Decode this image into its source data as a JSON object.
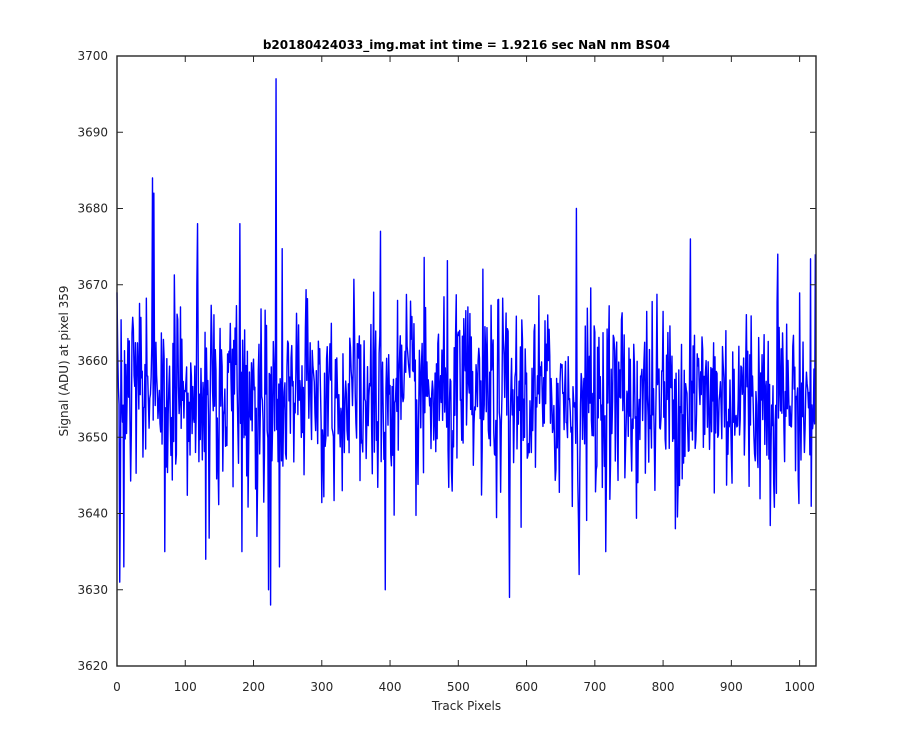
{
  "chart_data": {
    "type": "line",
    "title": "b20180424033_img.mat int time = 1.9216 sec  NaN nm BS04",
    "xlabel": "Track Pixels",
    "ylabel": "Signal (ADU) at pixel 359",
    "xlim": [
      0,
      1024
    ],
    "ylim": [
      3620,
      3700
    ],
    "xticks": [
      0,
      100,
      200,
      300,
      400,
      500,
      600,
      700,
      800,
      900,
      1000
    ],
    "yticks": [
      3620,
      3630,
      3640,
      3650,
      3660,
      3670,
      3680,
      3690,
      3700
    ],
    "grid": false,
    "series": [
      {
        "color": "#0000ff",
        "x_start": 0,
        "x_step": 1,
        "n_points": 1024,
        "mean": 3655,
        "std": 6.5,
        "notable_points": [
          [
            0,
            3669
          ],
          [
            4,
            3631
          ],
          [
            10,
            3633
          ],
          [
            52,
            3684
          ],
          [
            54,
            3682
          ],
          [
            70,
            3635
          ],
          [
            118,
            3678
          ],
          [
            130,
            3634
          ],
          [
            180,
            3678
          ],
          [
            183,
            3635
          ],
          [
            205,
            3637
          ],
          [
            222,
            3630
          ],
          [
            225,
            3628
          ],
          [
            233,
            3697
          ],
          [
            238,
            3633
          ],
          [
            386,
            3677
          ],
          [
            393,
            3630
          ],
          [
            575,
            3629
          ],
          [
            673,
            3680
          ],
          [
            677,
            3632
          ],
          [
            840,
            3676
          ],
          [
            968,
            3674
          ],
          [
            1023,
            3674
          ]
        ]
      }
    ]
  }
}
